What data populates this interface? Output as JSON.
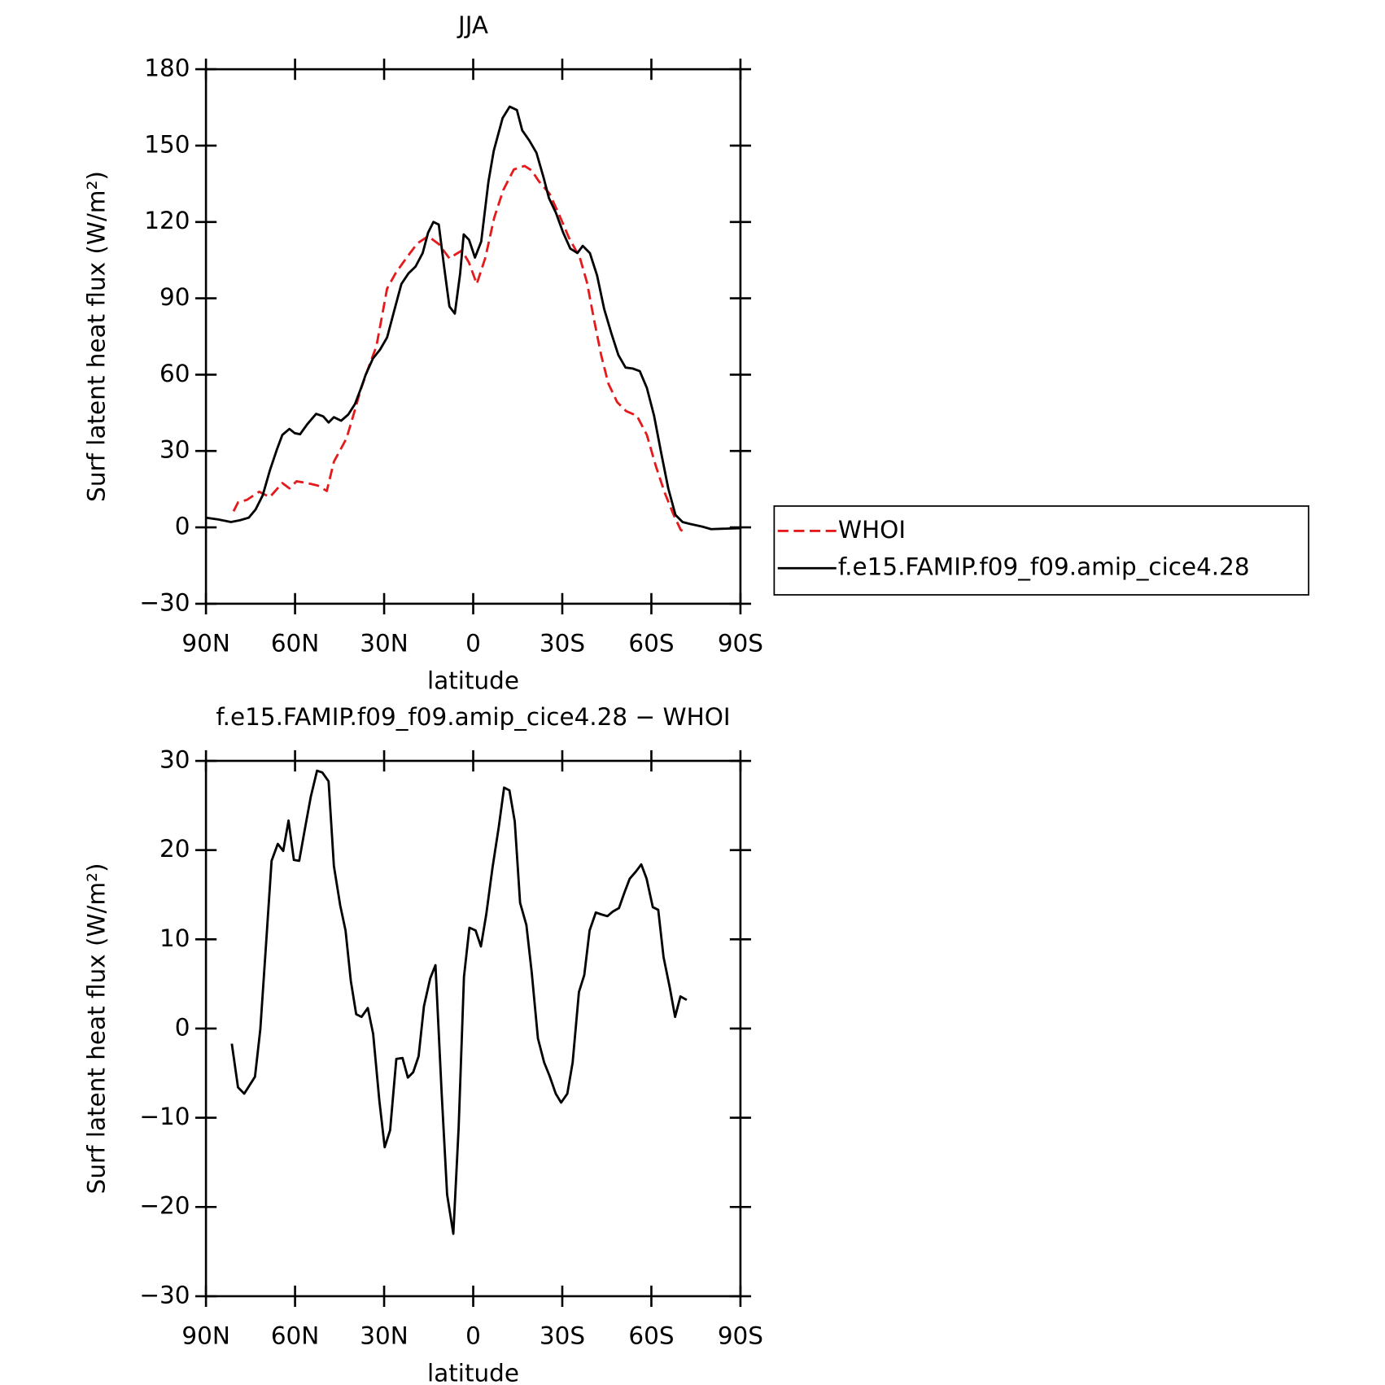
{
  "chart_data": [
    {
      "type": "line",
      "title": "JJA",
      "x_label": "latitude",
      "y_label": "Surf latent heat flux (W/m²)",
      "xlim": [
        90,
        -90
      ],
      "xticks": [
        {
          "value": 90,
          "label": "90N"
        },
        {
          "value": 60,
          "label": "60N"
        },
        {
          "value": 30,
          "label": "30N"
        },
        0,
        {
          "value": -30,
          "label": "30S"
        },
        {
          "value": -60,
          "label": "60S"
        },
        {
          "value": -90,
          "label": "90S"
        }
      ],
      "ylim": [
        -30,
        180
      ],
      "yticks": [
        {
          "value": -30,
          "label": "−30"
        },
        0,
        30,
        60,
        90,
        120,
        150,
        180
      ],
      "legend": "right",
      "series": [
        {
          "name": "WHOI",
          "color": "#e41a1c",
          "linestyle": "dashed",
          "x": [
            80.7,
            79.2,
            76.2,
            72.1,
            68.5,
            64.3,
            61.9,
            59.5,
            55.9,
            52.3,
            49.3,
            46.9,
            42.7,
            40.4,
            38,
            35.6,
            32.6,
            29,
            26,
            22.4,
            18.8,
            15.2,
            11.6,
            8,
            6.2,
            3.8,
            1.4,
            -1.2,
            -4.1,
            -7.1,
            -10.1,
            -13.7,
            -17.3,
            -19.7,
            -22.1,
            -25.7,
            -28.7,
            -32.3,
            -35.9,
            -38.3,
            -40.7,
            -43.1,
            -45.5,
            -48.5,
            -51.5,
            -55.1,
            -58.5,
            -61.5,
            -64.5,
            -67.5,
            -69.9,
            -71.7
          ],
          "values": [
            6.3,
            9.8,
            10.8,
            14,
            11.9,
            17.4,
            15.3,
            18.1,
            17.4,
            16.4,
            14.3,
            25.8,
            34.9,
            43.9,
            53.7,
            61.7,
            71.2,
            93.8,
            100.1,
            106,
            111.6,
            114.4,
            111.3,
            105.7,
            107.1,
            108.8,
            104,
            95.6,
            106,
            121.7,
            132.5,
            140.6,
            142,
            140.2,
            136,
            131.1,
            123.5,
            113.7,
            106,
            96.3,
            81.6,
            67.7,
            56.5,
            49.2,
            45.7,
            43.9,
            36.3,
            24.1,
            13.6,
            4.9,
            -1,
            -2.1
          ]
        },
        {
          "name": "f.e15.FAMIP.f09_f09.amip_cice4.28",
          "color": "#000000",
          "linestyle": "solid",
          "x": [
            90,
            85.8,
            81.6,
            78.6,
            75.6,
            73.3,
            70.9,
            68.5,
            66,
            64.3,
            61.9,
            60.1,
            58.3,
            55.9,
            52.9,
            50.5,
            48.7,
            46.9,
            44.5,
            42.1,
            39.8,
            38,
            36.2,
            33.8,
            31.4,
            29,
            26.6,
            24.2,
            21.8,
            19.4,
            17,
            15.2,
            13.4,
            11.6,
            9.8,
            8,
            6.2,
            4.4,
            3.2,
            1.4,
            -0.6,
            -2.7,
            -5.1,
            -6.9,
            -9.9,
            -12.3,
            -14.7,
            -16.5,
            -18.9,
            -21.3,
            -23.7,
            -25.5,
            -27.9,
            -30.3,
            -32.7,
            -35.1,
            -36.9,
            -39.3,
            -41.7,
            -44.1,
            -46.5,
            -48.9,
            -51.3,
            -53.7,
            -56.1,
            -58.5,
            -60.9,
            -63.3,
            -65.7,
            -68.1,
            -70.5,
            -72.9,
            -77.1,
            -80.1,
            -90
          ],
          "values": [
            3.8,
            3.1,
            2.1,
            2.8,
            3.8,
            7,
            12.6,
            22.3,
            31,
            36.3,
            38.7,
            37,
            36.6,
            40.5,
            44.6,
            43.6,
            41.2,
            43.3,
            41.9,
            44.3,
            48.5,
            54,
            60,
            66.3,
            69.8,
            74.6,
            85.1,
            95.6,
            99.8,
            102.5,
            107.8,
            115.8,
            120,
            119,
            102.5,
            86.8,
            84,
            99.8,
            115.1,
            113,
            106,
            112.3,
            135.7,
            147.9,
            160.8,
            165.3,
            164,
            156,
            152,
            147.2,
            137.4,
            129.4,
            123.5,
            115.8,
            109.5,
            107.8,
            110.6,
            107.8,
            99,
            85.8,
            76.4,
            67.7,
            62.8,
            62.4,
            61.4,
            54.8,
            43.9,
            29.3,
            15.3,
            4.9,
            2.1,
            1.4,
            0.3,
            -0.7,
            -0.3
          ]
        }
      ]
    },
    {
      "type": "line",
      "title": "f.e15.FAMIP.f09_f09.amip_cice4.28 − WHOI",
      "x_label": "latitude",
      "y_label": "Surf latent heat flux (W/m²)",
      "xlim": [
        90,
        -90
      ],
      "xticks": [
        {
          "value": 90,
          "label": "90N"
        },
        {
          "value": 60,
          "label": "60N"
        },
        {
          "value": 30,
          "label": "30N"
        },
        0,
        {
          "value": -30,
          "label": "30S"
        },
        {
          "value": -60,
          "label": "60S"
        },
        {
          "value": -90,
          "label": "90S"
        }
      ],
      "ylim": [
        -30,
        30
      ],
      "yticks": [
        {
          "value": -30,
          "label": "−30"
        },
        {
          "value": -20,
          "label": "−20"
        },
        {
          "value": -10,
          "label": "−10"
        },
        0,
        10,
        20,
        30
      ],
      "color": "#000000",
      "linestyle": "solid",
      "x": [
        81.3,
        79.2,
        77.1,
        73.5,
        71.7,
        69.7,
        67.9,
        65.8,
        64,
        62.2,
        60.4,
        58.6,
        56.5,
        54.7,
        52.6,
        50.8,
        48.7,
        46.9,
        44.8,
        43,
        41.2,
        39.4,
        37.6,
        35.5,
        33.7,
        31.6,
        29.8,
        28,
        25.9,
        23.8,
        22,
        20.2,
        18.4,
        16.6,
        14.5,
        12.7,
        10.6,
        8.8,
        6.7,
        4.9,
        3.1,
        1.3,
        -0.8,
        -2.6,
        -4.4,
        -6.5,
        -8.6,
        -10.4,
        -12.2,
        -14,
        -15.8,
        -17.9,
        -19.7,
        -21.8,
        -23.9,
        -25.7,
        -27.8,
        -29.6,
        -31.7,
        -33.5,
        -35.6,
        -37.4,
        -39.2,
        -41.3,
        -43.1,
        -45.2,
        -47,
        -49.1,
        -50.9,
        -52.7,
        -54.8,
        -56.6,
        -58.4,
        -60.5,
        -62.3,
        -64.1,
        -66.2,
        -68,
        -69.8,
        -71.9
      ],
      "values": [
        -1.7,
        -6.6,
        -7.3,
        -5.4,
        -0.1,
        9.8,
        18.8,
        20.7,
        19.9,
        23.3,
        18.9,
        18.8,
        22.7,
        26,
        28.9,
        28.7,
        27.7,
        18.2,
        13.8,
        11,
        5.3,
        1.6,
        1.3,
        2.3,
        -0.6,
        -8.1,
        -13.3,
        -11.4,
        -3.4,
        -3.3,
        -5.5,
        -4.9,
        -3.1,
        2.5,
        5.6,
        7.1,
        -7.3,
        -18.6,
        -23,
        -11.1,
        5.8,
        11.3,
        11,
        9.2,
        12.8,
        18,
        22.6,
        27,
        26.7,
        23.2,
        14.1,
        11.6,
        6.3,
        -1.1,
        -3.8,
        -5.3,
        -7.3,
        -8.3,
        -7.3,
        -3.8,
        4.1,
        6,
        11,
        13,
        12.8,
        12.6,
        13.1,
        13.5,
        15.2,
        16.8,
        17.6,
        18.4,
        16.8,
        13.6,
        13.3,
        8,
        4.6,
        1.3,
        3.6,
        3.2
      ]
    }
  ]
}
